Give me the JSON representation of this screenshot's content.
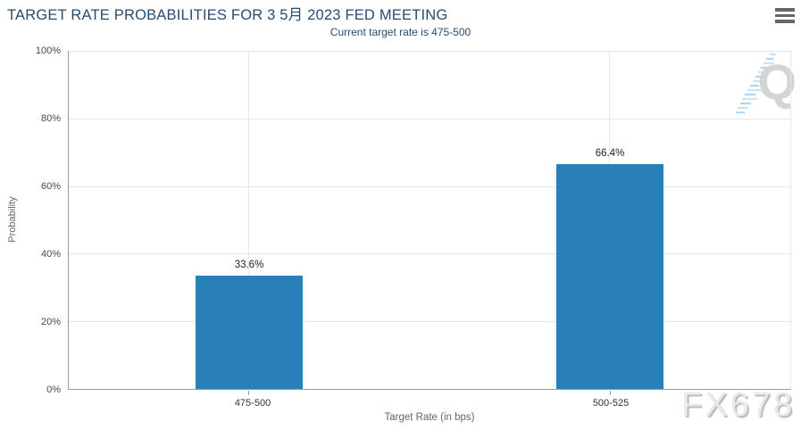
{
  "header": {
    "title": "TARGET RATE PROBABILITIES FOR 3 5月 2023 FED MEETING",
    "menu_icon": "hamburger-icon"
  },
  "chart_data": {
    "type": "bar",
    "title": "TARGET RATE PROBABILITIES FOR 3 5月 2023 FED MEETING",
    "subtitle": "Current target rate is 475-500",
    "categories": [
      "475-500",
      "500-525"
    ],
    "values": [
      33.6,
      66.4
    ],
    "value_labels": [
      "33.6%",
      "66.4%"
    ],
    "xlabel": "Target Rate (in bps)",
    "ylabel": "Probability",
    "ylim": [
      0,
      100
    ],
    "yticks": [
      "0%",
      "20%",
      "40%",
      "60%",
      "80%",
      "100%"
    ],
    "bar_color": "#2980b9",
    "grid": true,
    "legend_position": "none"
  },
  "watermarks": {
    "bottom_right": "FX678",
    "logo_letter": "Q"
  }
}
